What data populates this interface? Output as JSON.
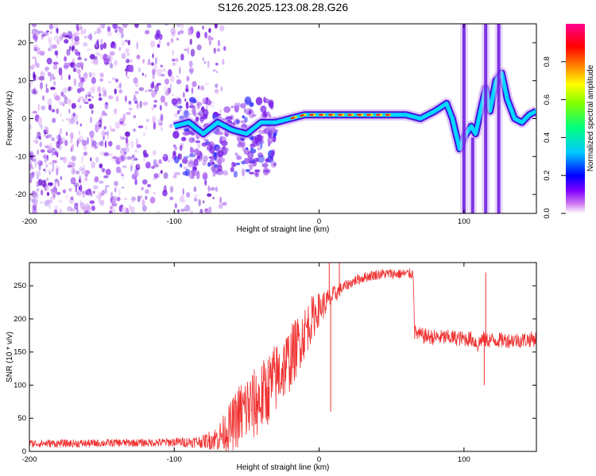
{
  "figure": {
    "title": "S126.2025.123.08.28.G26"
  },
  "chart_data": [
    {
      "type": "heatmap",
      "title": "S126.2025.123.08.28.G26",
      "xlabel": "Height of straight line (km)",
      "ylabel": "Frequency (Hz)",
      "xlim": [
        -200,
        150
      ],
      "ylim": [
        -25,
        25
      ],
      "x_ticks": [
        -200,
        -100,
        0,
        100
      ],
      "y_ticks": [
        -20,
        -10,
        0,
        10,
        20
      ],
      "colorbar": {
        "label": "Normalized spectral amplitude",
        "range": [
          0.0,
          1.0
        ],
        "ticks": [
          0.0,
          0.2,
          0.4,
          0.6,
          0.8
        ],
        "colors": [
          "#ffffff",
          "#d07cf0",
          "#8000ff",
          "#0000ff",
          "#00c8ff",
          "#00ff80",
          "#80ff00",
          "#ffff00",
          "#ff8000",
          "#ff0000",
          "#ff0090"
        ]
      },
      "noise_region_x": [
        -200,
        -75
      ],
      "ridge": {
        "x": [
          -100,
          -90,
          -80,
          -70,
          -60,
          -50,
          -40,
          -30,
          -20,
          -10,
          0,
          10,
          20,
          30,
          40,
          50,
          60,
          70,
          80,
          88,
          92,
          97,
          100,
          105,
          108,
          112,
          115,
          118,
          122,
          126,
          130,
          135,
          140,
          145,
          150
        ],
        "freq": [
          -2,
          -1,
          -4,
          -1,
          -3,
          -4,
          -1,
          -1,
          0,
          1,
          1,
          1,
          1,
          1,
          1,
          1,
          1,
          0,
          2,
          4,
          0,
          -8,
          -5,
          -2,
          -4,
          3,
          8,
          2,
          10,
          12,
          5,
          0,
          -1,
          1,
          2
        ]
      }
    },
    {
      "type": "line",
      "xlabel": "Height of straight line (km)",
      "ylabel": "SNR (10 * v/v)",
      "xlim": [
        -200,
        150
      ],
      "ylim": [
        0,
        285
      ],
      "x_ticks": [
        -200,
        -100,
        0,
        100
      ],
      "y_ticks": [
        0,
        50,
        100,
        150,
        200,
        250
      ],
      "color": "#f03030",
      "series": [
        {
          "x": [
            -200,
            -180,
            -160,
            -140,
            -120,
            -100,
            -90,
            -80,
            -70,
            -60,
            -55,
            -50,
            -45,
            -40,
            -35,
            -30,
            -25,
            -20,
            -15,
            -10,
            -5,
            0,
            5,
            10,
            15,
            20,
            25,
            30,
            35,
            40,
            45,
            50,
            55,
            60,
            63,
            65,
            66,
            70,
            80,
            90,
            100,
            105,
            108,
            110,
            112,
            115,
            120,
            130,
            140,
            150
          ],
          "values": [
            12,
            12,
            12,
            13,
            13,
            14,
            14,
            15,
            20,
            40,
            55,
            65,
            70,
            80,
            95,
            110,
            125,
            140,
            160,
            180,
            200,
            215,
            225,
            235,
            245,
            252,
            258,
            262,
            265,
            267,
            268,
            268,
            268,
            268,
            268,
            268,
            180,
            175,
            172,
            172,
            170,
            170,
            165,
            160,
            170,
            168,
            168,
            168,
            168,
            170
          ],
          "noise_amplitude": [
            6,
            6,
            6,
            6,
            6,
            7,
            8,
            10,
            20,
            40,
            50,
            55,
            55,
            55,
            55,
            55,
            50,
            50,
            45,
            40,
            35,
            25,
            20,
            15,
            10,
            8,
            8,
            8,
            8,
            8,
            8,
            8,
            8,
            8,
            8,
            8,
            12,
            12,
            12,
            12,
            12,
            12,
            12,
            14,
            14,
            12,
            12,
            12,
            12,
            12
          ]
        }
      ],
      "spikes": [
        {
          "x": 7,
          "value": 285
        },
        {
          "x": 8,
          "value": 60
        },
        {
          "x": 14,
          "value": 285
        },
        {
          "x": 114,
          "value": 100
        },
        {
          "x": 115,
          "value": 270
        }
      ]
    }
  ]
}
